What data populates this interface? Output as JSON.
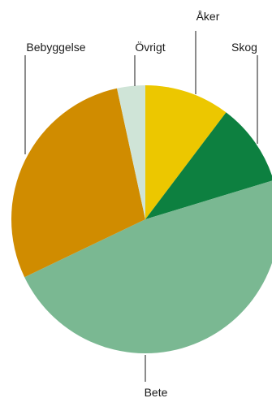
{
  "chart_data": {
    "type": "pie",
    "title": "",
    "legend": "none",
    "start": "top, clockwise",
    "slices": [
      {
        "label": "Åker",
        "value": 10.3,
        "color": "#ecc700"
      },
      {
        "label": "Skog",
        "value": 10.0,
        "color": "#0d8040"
      },
      {
        "label": "Bete",
        "value": 47.6,
        "color": "#7ab892"
      },
      {
        "label": "Bebyggelse",
        "value": 28.7,
        "color": "#d08c00"
      },
      {
        "label": "Övrigt",
        "value": 3.4,
        "color": "#cfe4d7"
      }
    ]
  }
}
